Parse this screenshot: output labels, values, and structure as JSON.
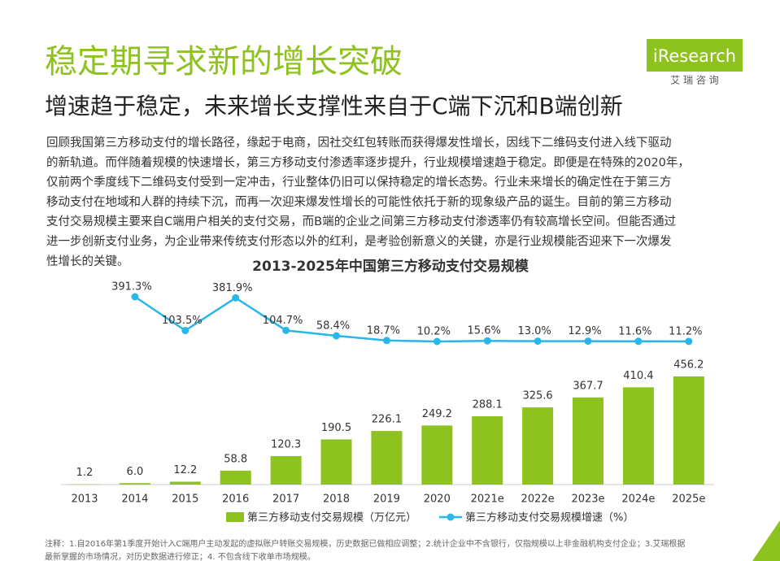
{
  "header": {
    "title": "稳定期寻求新的增长突破",
    "subtitle": "增速趋于稳定，未来增长支撑性来自于C端下沉和B端创新",
    "logo": "iResearch",
    "logo_cn": "艾 瑞 咨 询"
  },
  "body": [
    "回顾我国第三方移动支付的增长路径，缘起于电商，因社交红包转账而获得爆发性增长，因线下二维码支付进入线下驱动",
    "的新轨道。而伴随着规模的快速增长，第三方移动支付渗透率逐步提升，行业规模增速趋于稳定。即便是在特殊的2020年，",
    "仅前两个季度线下二维码支付受到一定冲击，行业整体仍旧可以保持稳定的增长态势。行业未来增长的确定性在于第三方",
    "移动支付在地域和人群的持续下沉，而再一次迎来爆发性增长的可能性依托于新的现象级产品的诞生。目前的第三方移动",
    "支付交易规模主要来自C端用户相关的支付交易，而B端的企业之间第三方移动支付渗透率仍有较高增长空间。但能否通过",
    "进一步创新支付业务，为企业带来传统支付形态以外的红利，是考验创新意义的关键，亦是行业规模能否迎来下一次爆发",
    "性增长的关键。"
  ],
  "chart_data": {
    "type": "combo",
    "title": "2013-2025年中国第三方移动支付交易规模",
    "categories": [
      "2013",
      "2014",
      "2015",
      "2016",
      "2017",
      "2018",
      "2019",
      "2020",
      "2021e",
      "2022e",
      "2023e",
      "2024e",
      "2025e"
    ],
    "series": [
      {
        "name": "第三方移动支付交易规模（万亿元）",
        "type": "bar",
        "color": "#8dc21f",
        "values": [
          1.2,
          6.0,
          12.2,
          58.8,
          120.3,
          190.5,
          226.1,
          249.2,
          288.1,
          325.6,
          367.7,
          410.4,
          456.2
        ],
        "value_labels": [
          "1.2",
          "6.0",
          "12.2",
          "58.8",
          "120.3",
          "190.5",
          "226.1",
          "249.2",
          "288.1",
          "325.6",
          "367.7",
          "410.4",
          "456.2"
        ]
      },
      {
        "name": "第三方移动支付交易规模增速（%）",
        "type": "line",
        "color": "#29b6e8",
        "axis": "y2",
        "values": [
          null,
          391.3,
          103.5,
          381.9,
          104.7,
          58.4,
          18.7,
          10.2,
          15.6,
          13.0,
          12.9,
          11.6,
          11.2
        ],
        "value_labels": [
          null,
          "391.3%",
          "103.5%",
          "381.9%",
          "104.7%",
          "58.4%",
          "18.7%",
          "10.2%",
          "15.6%",
          "13.0%",
          "12.9%",
          "11.6%",
          "11.2%"
        ]
      }
    ]
  },
  "footnote": [
    "注释：1.自2016年第1季度开始计入C端用户主动发起的虚拟账户转账交易规模，历史数据已做相应调整；2.统计企业中不含银行，仅指规模以上非金融机构支付企业；3.艾瑞根据",
    "最新掌握的市场情况，对历史数据进行修正；4. 不包含线下收单市场规模。"
  ]
}
